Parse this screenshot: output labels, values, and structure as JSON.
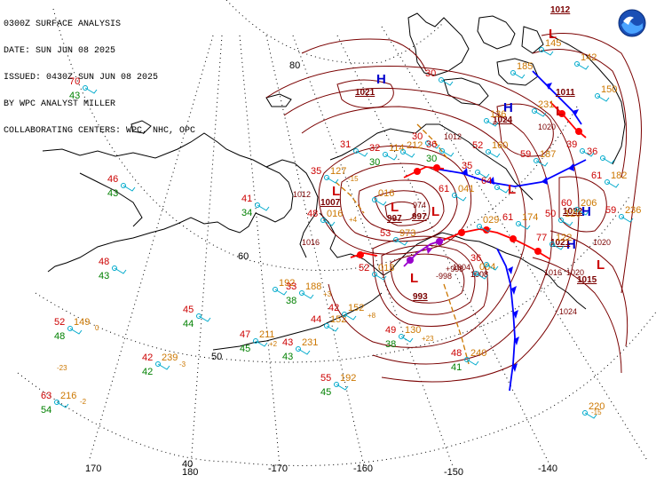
{
  "header": {
    "lines": [
      "0300Z SURFACE ANALYSIS",
      "DATE: SUN JUN 08 2025",
      "ISSUED: 0430Z SUN JUN 08 2025",
      "BY WPC ANALYST MILLER",
      "COLLABORATING CENTERS: WPC, NHC, OPC"
    ]
  },
  "colors": {
    "isobar": "#7a0000",
    "pressure_label": "#7a0000",
    "high": "#0000cc",
    "low": "#cc0000",
    "temperature": "#cc0000",
    "dewpoint": "#008000",
    "pressure_obs": "#cc7700",
    "cold_front": "#0000ff",
    "warm_front": "#ff0000",
    "occluded_front": "#9900cc",
    "trough": "#cc7700",
    "wind_barb": "#00aacc",
    "coastline": "#000000",
    "graticule": "#000000"
  },
  "graticule_labels": [
    {
      "text": "80"
    },
    {
      "text": "60"
    },
    {
      "text": "50"
    },
    {
      "text": "40"
    },
    {
      "text": "170"
    },
    {
      "text": "180"
    },
    {
      "text": "-170"
    },
    {
      "text": "-160"
    },
    {
      "text": "-150"
    },
    {
      "text": "-140"
    }
  ],
  "pressure_centers": [
    {
      "type": "H",
      "value": "1021"
    },
    {
      "type": "H",
      "value": "1024"
    },
    {
      "type": "H",
      "value": "1022"
    },
    {
      "type": "H",
      "value": "1021"
    },
    {
      "type": "L",
      "value": "1007"
    },
    {
      "type": "L",
      "value": "997"
    },
    {
      "type": "L",
      "value": "997"
    },
    {
      "type": "L",
      "value": "993"
    },
    {
      "type": "L",
      "value": "1011"
    },
    {
      "type": "L",
      "value": "1015"
    },
    {
      "type": "L",
      "value": "1012"
    },
    {
      "type": "L",
      "value": ""
    }
  ],
  "isobar_labels": [
    "1012",
    "1016",
    "1020",
    "1024",
    "1020",
    "1016",
    "1008",
    "1020",
    "974",
    "1004",
    "1008",
    "1012"
  ],
  "station_obs": [
    {
      "t": "70",
      "td": "43",
      "p": ""
    },
    {
      "t": "46",
      "td": "43",
      "p": ""
    },
    {
      "t": "48",
      "td": "43",
      "p": ""
    },
    {
      "t": "52",
      "td": "48",
      "p": "149"
    },
    {
      "t": "42",
      "td": "42",
      "p": "239"
    },
    {
      "t": "63",
      "td": "54",
      "p": "216"
    },
    {
      "t": "45",
      "td": "44",
      "p": ""
    },
    {
      "t": "47",
      "td": "45",
      "p": "211"
    },
    {
      "t": "43",
      "td": "43",
      "p": "231"
    },
    {
      "t": "44",
      "td": "",
      "p": "152"
    },
    {
      "t": "42",
      "td": "",
      "p": "152"
    },
    {
      "t": "49",
      "td": "38",
      "p": "130"
    },
    {
      "t": "55",
      "td": "45",
      "p": "192"
    },
    {
      "t": "48",
      "td": "41",
      "p": "240"
    },
    {
      "t": "",
      "td": "",
      "p": "192"
    },
    {
      "t": "33",
      "td": "38",
      "p": "188"
    },
    {
      "t": "41",
      "td": "34",
      "p": ""
    },
    {
      "t": "35",
      "td": "",
      "p": "127"
    },
    {
      "t": "31",
      "td": "",
      "p": ""
    },
    {
      "t": "32",
      "td": "30",
      "p": "114"
    },
    {
      "t": "30",
      "td": "",
      "p": ""
    },
    {
      "t": "36",
      "td": "30",
      "p": ""
    },
    {
      "t": "48",
      "td": "",
      "p": "016"
    },
    {
      "t": "52",
      "td": "",
      "p": "013"
    },
    {
      "t": "53",
      "td": "",
      "p": "973"
    },
    {
      "t": "61",
      "td": "",
      "p": "041"
    },
    {
      "t": "64",
      "td": "",
      "p": ""
    },
    {
      "t": "52",
      "td": "",
      "p": "160"
    },
    {
      "t": "59",
      "td": "",
      "p": "187"
    },
    {
      "t": "61",
      "td": "",
      "p": "174"
    },
    {
      "t": "77",
      "td": "",
      "p": "122"
    },
    {
      "t": "61",
      "td": "",
      "p": "182"
    },
    {
      "t": "60",
      "td": "",
      "p": "206"
    },
    {
      "t": "59",
      "td": "",
      "p": "236"
    },
    {
      "t": "",
      "td": "",
      "p": "220"
    },
    {
      "t": "50",
      "td": "",
      "p": "120"
    },
    {
      "t": "30",
      "td": "",
      "p": ""
    },
    {
      "t": "",
      "td": "",
      "p": "016"
    },
    {
      "t": "",
      "td": "",
      "p": "029"
    },
    {
      "t": "",
      "td": "",
      "p": "004"
    },
    {
      "t": "",
      "td": "",
      "p": "231"
    },
    {
      "t": "",
      "td": "",
      "p": "145"
    },
    {
      "t": "",
      "td": "",
      "p": "212"
    },
    {
      "t": "",
      "td": "",
      "p": "142"
    },
    {
      "t": "",
      "td": "",
      "p": "150"
    },
    {
      "t": "",
      "td": "",
      "p": "136"
    },
    {
      "t": "",
      "td": "",
      "p": "185"
    },
    {
      "t": "36",
      "td": "",
      "p": ""
    },
    {
      "t": "39",
      "td": "",
      "p": ""
    },
    {
      "t": "35",
      "td": "",
      "p": ""
    },
    {
      "t": "36",
      "td": "",
      "p": ""
    }
  ],
  "pressure_tendencies": [
    "0",
    "-23",
    "-3",
    "-2",
    "+3",
    "+8",
    "-15",
    "+23",
    "+2",
    "+4",
    "-15"
  ],
  "extra_labels": [
    "-998",
    "+998"
  ],
  "legend": "NOAA logo"
}
